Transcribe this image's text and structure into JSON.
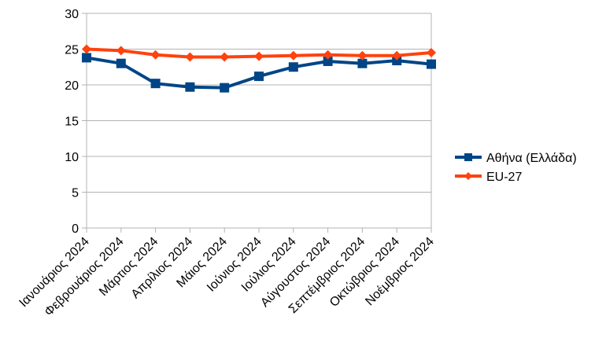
{
  "chart_data": {
    "type": "line",
    "categories": [
      "Ιανουάριος 2024",
      "Φεβρουάριος 2024",
      "Μάρτιος 2024",
      "Απρίλιος 2024",
      "Μάιος 2024",
      "Ιούνιος 2024",
      "Ιούλιος 2024",
      "Αύγουστος 2024",
      "Σεπτέμβριος 2024",
      "Οκτώβριος 2024",
      "Νοέμβριος 2024"
    ],
    "series": [
      {
        "name": "Αθήνα (Ελλάδα)",
        "color": "#004586",
        "marker": "square",
        "values": [
          23.8,
          23.0,
          20.2,
          19.7,
          19.6,
          21.2,
          22.5,
          23.3,
          23.0,
          23.4,
          22.9
        ]
      },
      {
        "name": "EU-27",
        "color": "#ff420e",
        "marker": "diamond",
        "values": [
          25.0,
          24.8,
          24.2,
          23.9,
          23.9,
          24.0,
          24.1,
          24.2,
          24.1,
          24.1,
          24.5
        ]
      }
    ],
    "title": "",
    "xlabel": "",
    "ylabel": "",
    "ylim": [
      0,
      30
    ],
    "yticks": [
      0,
      5,
      10,
      15,
      20,
      25,
      30
    ],
    "grid": "horizontal",
    "legend_position": "right"
  }
}
